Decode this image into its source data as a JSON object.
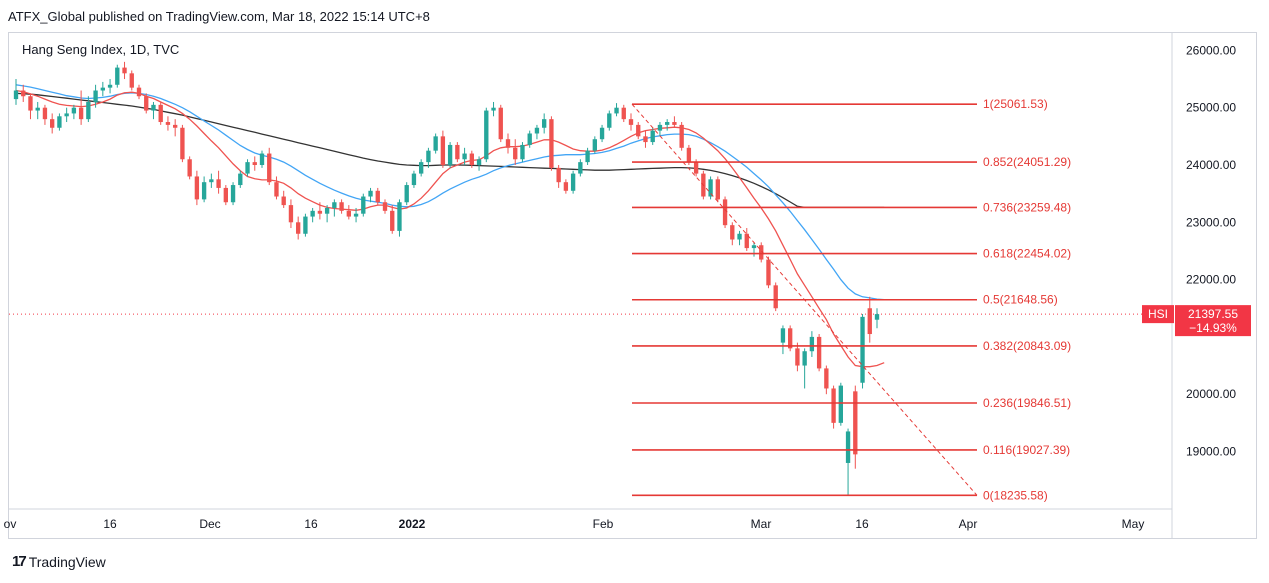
{
  "header": {
    "published_line": "ATFX_Global published on TradingView.com, Mar 18, 2022 15:14 UTC+8",
    "symbol_line": "Hang Seng Index, 1D, TVC"
  },
  "footer": {
    "brand": "TradingView",
    "logo_glyph": "17"
  },
  "price_tag": {
    "symbol": "HSI",
    "price": "21397.55",
    "change": "−14.93%",
    "color": "#f23645"
  },
  "chart_data": {
    "type": "candlestick",
    "title": "Hang Seng Index, 1D, TVC",
    "x_ticks": [
      "ov",
      "16",
      "Dec",
      "16",
      "2022",
      "Feb",
      "Mar",
      "16",
      "Apr",
      "May"
    ],
    "y_ticks": [
      26000,
      25000,
      24000,
      23000,
      22000,
      20000,
      19000
    ],
    "y_tick_labels": [
      "26000.00",
      "25000.00",
      "24000.00",
      "23000.00",
      "22000.00",
      "20000.00",
      "19000.00"
    ],
    "ylim": [
      18000,
      26200
    ],
    "last_price": 21397.55,
    "colors": {
      "up": "#26a69a",
      "down": "#ef5350",
      "fib": "#e53935",
      "ma_fast": "#ef5350",
      "ma_mid": "#42a5f5",
      "ma_slow": "#333333"
    },
    "candles": [
      [
        25150,
        25500,
        25050,
        25300
      ],
      [
        25300,
        25400,
        25100,
        25200
      ],
      [
        25200,
        25250,
        24800,
        24950
      ],
      [
        24950,
        25100,
        24800,
        25000
      ],
      [
        25000,
        25050,
        24700,
        24800
      ],
      [
        24800,
        24900,
        24550,
        24650
      ],
      [
        24650,
        24900,
        24600,
        24850
      ],
      [
        24850,
        25000,
        24750,
        24900
      ],
      [
        24900,
        25050,
        24800,
        25000
      ],
      [
        25000,
        25300,
        24700,
        24800
      ],
      [
        24800,
        25200,
        24750,
        25100
      ],
      [
        25100,
        25400,
        25000,
        25300
      ],
      [
        25300,
        25450,
        25200,
        25350
      ],
      [
        25350,
        25500,
        25250,
        25400
      ],
      [
        25400,
        25750,
        25350,
        25700
      ],
      [
        25700,
        25800,
        25500,
        25600
      ],
      [
        25600,
        25650,
        25300,
        25350
      ],
      [
        25350,
        25400,
        25150,
        25200
      ],
      [
        25200,
        25250,
        24900,
        24950
      ],
      [
        24950,
        25100,
        24800,
        25050
      ],
      [
        25050,
        25100,
        24700,
        24750
      ],
      [
        24750,
        24850,
        24600,
        24700
      ],
      [
        24700,
        24800,
        24500,
        24650
      ],
      [
        24650,
        24700,
        24050,
        24100
      ],
      [
        24100,
        24150,
        23750,
        23800
      ],
      [
        23800,
        23900,
        23300,
        23400
      ],
      [
        23400,
        23800,
        23350,
        23700
      ],
      [
        23700,
        23850,
        23600,
        23750
      ],
      [
        23750,
        23900,
        23500,
        23600
      ],
      [
        23600,
        23650,
        23300,
        23350
      ],
      [
        23350,
        23700,
        23300,
        23650
      ],
      [
        23650,
        23900,
        23600,
        23850
      ],
      [
        23850,
        24100,
        23800,
        24050
      ],
      [
        24050,
        24150,
        23900,
        24000
      ],
      [
        24000,
        24250,
        23950,
        24200
      ],
      [
        24200,
        24300,
        23650,
        23700
      ],
      [
        23700,
        23800,
        23400,
        23450
      ],
      [
        23450,
        23550,
        23250,
        23300
      ],
      [
        23300,
        23400,
        22900,
        23000
      ],
      [
        23000,
        23100,
        22700,
        22800
      ],
      [
        22800,
        23150,
        22750,
        23100
      ],
      [
        23100,
        23250,
        23000,
        23200
      ],
      [
        23200,
        23350,
        23050,
        23150
      ],
      [
        23150,
        23300,
        23000,
        23250
      ],
      [
        23250,
        23400,
        23100,
        23350
      ],
      [
        23350,
        23400,
        23150,
        23200
      ],
      [
        23200,
        23300,
        23050,
        23100
      ],
      [
        23100,
        23250,
        23000,
        23150
      ],
      [
        23150,
        23500,
        23100,
        23450
      ],
      [
        23450,
        23600,
        23350,
        23550
      ],
      [
        23550,
        23600,
        23300,
        23350
      ],
      [
        23350,
        23400,
        23150,
        23200
      ],
      [
        23200,
        23300,
        22800,
        22850
      ],
      [
        22850,
        23400,
        22750,
        23350
      ],
      [
        23350,
        23700,
        23300,
        23650
      ],
      [
        23650,
        23900,
        23600,
        23850
      ],
      [
        23850,
        24100,
        23800,
        24050
      ],
      [
        24050,
        24300,
        23950,
        24250
      ],
      [
        24250,
        24550,
        24200,
        24500
      ],
      [
        24500,
        24600,
        23950,
        24000
      ],
      [
        24000,
        24400,
        23950,
        24350
      ],
      [
        24350,
        24400,
        24050,
        24100
      ],
      [
        24100,
        24300,
        24000,
        24200
      ],
      [
        24200,
        24250,
        23950,
        24000
      ],
      [
        24000,
        24150,
        23900,
        24100
      ],
      [
        24100,
        25000,
        24050,
        24950
      ],
      [
        24950,
        25100,
        24850,
        25000
      ],
      [
        25000,
        25050,
        24400,
        24450
      ],
      [
        24450,
        24550,
        24200,
        24300
      ],
      [
        24300,
        24450,
        24000,
        24100
      ],
      [
        24100,
        24400,
        24050,
        24350
      ],
      [
        24350,
        24600,
        24300,
        24550
      ],
      [
        24550,
        24700,
        24450,
        24650
      ],
      [
        24650,
        24900,
        24550,
        24800
      ],
      [
        24800,
        24850,
        23900,
        23950
      ],
      [
        23950,
        24000,
        23600,
        23700
      ],
      [
        23700,
        23750,
        23500,
        23550
      ],
      [
        23550,
        23900,
        23500,
        23850
      ],
      [
        23850,
        24100,
        23800,
        24050
      ],
      [
        24050,
        24300,
        24000,
        24250
      ],
      [
        24250,
        24500,
        24200,
        24450
      ],
      [
        24450,
        24700,
        24400,
        24650
      ],
      [
        24650,
        24950,
        24600,
        24900
      ],
      [
        24900,
        25080,
        24850,
        25000
      ],
      [
        25000,
        25050,
        24750,
        24800
      ],
      [
        24800,
        24900,
        24600,
        24700
      ],
      [
        24700,
        24750,
        24450,
        24500
      ],
      [
        24500,
        24600,
        24300,
        24400
      ],
      [
        24400,
        24650,
        24350,
        24600
      ],
      [
        24600,
        24750,
        24500,
        24700
      ],
      [
        24700,
        24800,
        24600,
        24750
      ],
      [
        24750,
        24850,
        24650,
        24700
      ],
      [
        24700,
        24750,
        24250,
        24300
      ],
      [
        24300,
        24350,
        24000,
        24050
      ],
      [
        24050,
        24100,
        23800,
        23850
      ],
      [
        23850,
        23900,
        23400,
        23450
      ],
      [
        23450,
        23800,
        23400,
        23750
      ],
      [
        23750,
        23800,
        23350,
        23400
      ],
      [
        23400,
        23450,
        22900,
        22950
      ],
      [
        22950,
        23000,
        22600,
        22700
      ],
      [
        22700,
        22850,
        22600,
        22800
      ],
      [
        22800,
        22900,
        22500,
        22550
      ],
      [
        22550,
        22650,
        22400,
        22600
      ],
      [
        22600,
        22650,
        22300,
        22350
      ],
      [
        22350,
        22400,
        21850,
        21900
      ],
      [
        21900,
        21950,
        21450,
        21500
      ],
      [
        20900,
        21200,
        20700,
        21150
      ],
      [
        21150,
        21200,
        20750,
        20800
      ],
      [
        20800,
        20900,
        20400,
        20500
      ],
      [
        20500,
        20800,
        20100,
        20750
      ],
      [
        20750,
        21100,
        20650,
        21000
      ],
      [
        21000,
        21050,
        20400,
        20450
      ],
      [
        20450,
        20500,
        20000,
        20100
      ],
      [
        20100,
        20150,
        19400,
        19500
      ],
      [
        19500,
        20200,
        19450,
        20150
      ],
      [
        18800,
        19400,
        18236,
        19350
      ],
      [
        20050,
        20150,
        18700,
        18950
      ],
      [
        20200,
        21400,
        20100,
        21350
      ],
      [
        21500,
        21700,
        20900,
        21050
      ],
      [
        21300,
        21500,
        21150,
        21397.55
      ]
    ],
    "ma_fast": [
      25300,
      25280,
      25240,
      25200,
      25150,
      25100,
      25060,
      25040,
      25030,
      25020,
      25030,
      25060,
      25100,
      25150,
      25220,
      25260,
      25270,
      25250,
      25200,
      25160,
      25100,
      25040,
      24980,
      24900,
      24800,
      24680,
      24550,
      24420,
      24300,
      24160,
      24020,
      23900,
      23800,
      23760,
      23740,
      23740,
      23720,
      23680,
      23600,
      23500,
      23420,
      23360,
      23300,
      23260,
      23240,
      23230,
      23220,
      23210,
      23230,
      23270,
      23300,
      23300,
      23260,
      23230,
      23250,
      23320,
      23420,
      23550,
      23700,
      23850,
      23950,
      24000,
      24050,
      24080,
      24090,
      24160,
      24250,
      24300,
      24320,
      24320,
      24330,
      24360,
      24400,
      24440,
      24440,
      24400,
      24340,
      24280,
      24250,
      24240,
      24240,
      24260,
      24300,
      24360,
      24430,
      24500,
      24560,
      24600,
      24620,
      24640,
      24650,
      24660,
      24650,
      24620,
      24560,
      24470,
      24360,
      24250,
      24110,
      23950,
      23780,
      23600,
      23420,
      23250,
      23060,
      22850,
      22600,
      22350,
      22100,
      21900,
      21700,
      21500,
      21300,
      21050,
      20850,
      20650,
      20500,
      20480,
      20480,
      20500,
      20550
    ],
    "ma_mid": [
      25400,
      25380,
      25360,
      25330,
      25300,
      25270,
      25240,
      25210,
      25190,
      25170,
      25160,
      25170,
      25180,
      25200,
      25230,
      25250,
      25260,
      25250,
      25230,
      25200,
      25160,
      25110,
      25060,
      25000,
      24930,
      24850,
      24770,
      24690,
      24610,
      24520,
      24430,
      24340,
      24270,
      24210,
      24170,
      24140,
      24100,
      24050,
      23980,
      23900,
      23820,
      23750,
      23680,
      23620,
      23560,
      23510,
      23460,
      23420,
      23390,
      23370,
      23350,
      23330,
      23300,
      23280,
      23270,
      23280,
      23310,
      23360,
      23430,
      23510,
      23580,
      23640,
      23700,
      23750,
      23790,
      23840,
      23900,
      23950,
      23990,
      24020,
      24050,
      24080,
      24110,
      24140,
      24160,
      24170,
      24180,
      24180,
      24180,
      24190,
      24200,
      24220,
      24250,
      24290,
      24330,
      24380,
      24420,
      24460,
      24490,
      24510,
      24530,
      24540,
      24540,
      24530,
      24500,
      24450,
      24390,
      24320,
      24240,
      24150,
      24060,
      23960,
      23850,
      23740,
      23620,
      23480,
      23340,
      23190,
      23030,
      22870,
      22700,
      22530,
      22350,
      22180,
      22000,
      21850,
      21750,
      21700,
      21680,
      21660,
      21650
    ],
    "ma_slow": [
      25250,
      25245,
      25235,
      25225,
      25210,
      25195,
      25180,
      25165,
      25150,
      25135,
      25120,
      25105,
      25090,
      25075,
      25060,
      25045,
      25030,
      25010,
      24990,
      24970,
      24945,
      24920,
      24895,
      24870,
      24840,
      24810,
      24780,
      24750,
      24720,
      24690,
      24660,
      24630,
      24600,
      24570,
      24540,
      24510,
      24480,
      24450,
      24420,
      24390,
      24360,
      24330,
      24300,
      24270,
      24240,
      24210,
      24180,
      24150,
      24120,
      24095,
      24070,
      24050,
      24030,
      24010,
      24000,
      23995,
      23990,
      23990,
      23995,
      24000,
      24000,
      24000,
      23998,
      23995,
      23990,
      23985,
      23980,
      23975,
      23970,
      23965,
      23960,
      23955,
      23950,
      23945,
      23940,
      23935,
      23930,
      23925,
      23920,
      23915,
      23910,
      23910,
      23910,
      23915,
      23920,
      23925,
      23930,
      23935,
      23940,
      23945,
      23950,
      23955,
      23955,
      23950,
      23940,
      23925,
      23905,
      23880,
      23850,
      23815,
      23775,
      23730,
      23680,
      23625,
      23565,
      23500,
      23430,
      23355,
      23280,
      23260,
      23260,
      23260,
      23260,
      23260,
      23260,
      23260,
      23260,
      23260,
      23260,
      23260,
      23260
    ],
    "fib_levels": [
      {
        "ratio": 1,
        "price": 25061.53,
        "label": "1(25061.53)"
      },
      {
        "ratio": 0.852,
        "price": 24051.29,
        "label": "0.852(24051.29)"
      },
      {
        "ratio": 0.736,
        "price": 23259.48,
        "label": "0.736(23259.48)"
      },
      {
        "ratio": 0.618,
        "price": 22454.02,
        "label": "0.618(22454.02)"
      },
      {
        "ratio": 0.5,
        "price": 21648.56,
        "label": "0.5(21648.56)"
      },
      {
        "ratio": 0.382,
        "price": 20843.09,
        "label": "0.382(20843.09)"
      },
      {
        "ratio": 0.236,
        "price": 19846.51,
        "label": "0.236(19846.51)"
      },
      {
        "ratio": 0.116,
        "price": 19027.39,
        "label": "0.116(19027.39)"
      },
      {
        "ratio": 0,
        "price": 18235.58,
        "label": "0(18235.58)"
      }
    ],
    "trendline": {
      "from_price": 25061.53,
      "to_price": 18235.58
    }
  }
}
